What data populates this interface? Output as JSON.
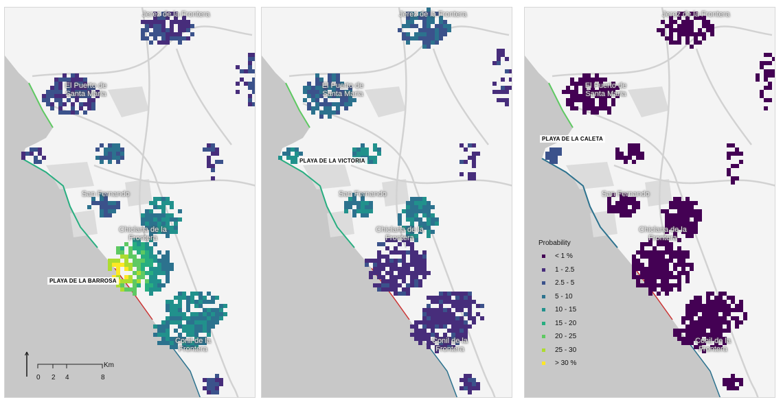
{
  "panels": [
    {
      "towns": [
        "Jerez de la Frontera",
        "El Puerto de Santa Maria",
        "San Fernando",
        "Chiclana de la Frontera",
        "Conil de la Frontera"
      ],
      "beach_label": "PLAYA DE LA BARROSA",
      "hotspot": "barrosa"
    },
    {
      "towns": [
        "Jerez de la Frontera",
        "El Puerto de Santa Maria",
        "San Fernando",
        "Chiclana de la Frontera",
        "Conil de la Frontera"
      ],
      "beach_label": "PLAYA DE LA VICTORIA",
      "hotspot": "victoria"
    },
    {
      "towns": [
        "Jerez de la Frontera",
        "El Puerto de Santa Maria",
        "San Fernando",
        "Chiclana de la Frontera",
        "Conil de la Frontera"
      ],
      "beach_label": "PLAYA DE LA CALETA",
      "hotspot": "caleta"
    }
  ],
  "legend": {
    "title": "Probability",
    "classes": [
      {
        "label": "< 1 %",
        "color": "#440154"
      },
      {
        "label": "1 - 2.5",
        "color": "#472d7b"
      },
      {
        "label": "2.5 - 5",
        "color": "#3b528b"
      },
      {
        "label": "5 - 10",
        "color": "#2c728e"
      },
      {
        "label": "10 - 15",
        "color": "#21918c"
      },
      {
        "label": "15 - 20",
        "color": "#28ae80"
      },
      {
        "label": "20 - 25",
        "color": "#5ec962"
      },
      {
        "label": "25 - 30",
        "color": "#addc30"
      },
      {
        "label": "> 30 %",
        "color": "#fde725"
      }
    ]
  },
  "scale": {
    "ticks": [
      "0",
      "2",
      "4",
      "8"
    ],
    "unit": "Km"
  },
  "colors": {
    "sea": "#c8c8c8",
    "land": "#f4f4f4",
    "urban": "#dcdcdc",
    "roads": "#d2d2d2"
  }
}
